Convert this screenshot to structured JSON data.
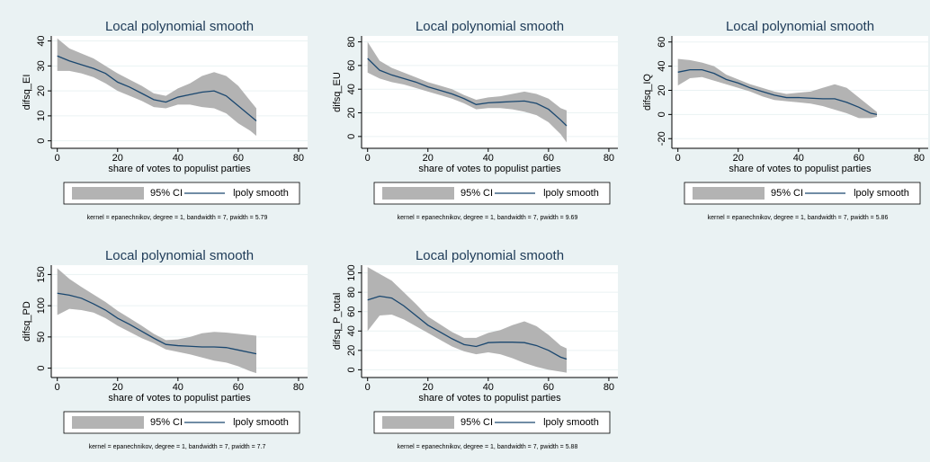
{
  "chart_data": [
    {
      "type": "line",
      "title": "Local polynomial smooth",
      "xlabel": "share of votes to populist parties",
      "ylabel": "difsq_EI",
      "note": "kernel = epanechnikov, degree = 1, bandwidth = 7, pwidth = 5.79",
      "x": [
        0,
        4,
        8,
        12,
        16,
        20,
        24,
        28,
        32,
        36,
        40,
        44,
        48,
        52,
        56,
        60,
        64,
        66
      ],
      "series": [
        {
          "name": "95% CI",
          "color": "#b3b3b3",
          "type": "band",
          "upper": [
            41,
            37,
            35,
            33,
            30,
            27,
            24.5,
            22,
            19,
            18,
            21,
            23,
            26,
            27.5,
            26,
            22,
            16,
            13
          ],
          "lower": [
            28,
            28,
            27,
            25.5,
            23,
            20,
            18,
            16,
            13.5,
            13,
            14.5,
            14.5,
            13.5,
            13,
            11,
            7,
            4,
            2
          ]
        },
        {
          "name": "lpoly smooth",
          "color": "#1a476f",
          "values": [
            34,
            32,
            30.5,
            29,
            27,
            23.5,
            21.5,
            19,
            16.5,
            15.5,
            17.5,
            18.5,
            19.5,
            20,
            18,
            14,
            10,
            8
          ]
        }
      ],
      "xlim": [
        -2,
        83
      ],
      "xticks": [
        0,
        20,
        40,
        60,
        80
      ],
      "ylim": [
        -3,
        42
      ],
      "yticks": [
        0,
        10,
        20,
        30,
        40
      ],
      "grid": true,
      "legend": "bottom"
    },
    {
      "type": "line",
      "title": "Local polynomial smooth",
      "xlabel": "share of votes to populist parties",
      "ylabel": "difsq_EU",
      "note": "kernel = epanechnikov, degree = 1, bandwidth = 7, pwidth = 9.69",
      "x": [
        0,
        4,
        8,
        12,
        16,
        20,
        24,
        28,
        32,
        36,
        40,
        44,
        48,
        52,
        56,
        60,
        64,
        66
      ],
      "series": [
        {
          "name": "95% CI",
          "color": "#b3b3b3",
          "type": "band",
          "upper": [
            80,
            64,
            58,
            54,
            50,
            46,
            43,
            40,
            35,
            31,
            33,
            34,
            36,
            38,
            36,
            32,
            24,
            22
          ],
          "lower": [
            54,
            49,
            46,
            44,
            41,
            38,
            35,
            32,
            28,
            23,
            24,
            24,
            23,
            21,
            18,
            12,
            2,
            -5
          ]
        },
        {
          "name": "lpoly smooth",
          "color": "#1a476f",
          "values": [
            66,
            56,
            52,
            49,
            46,
            42,
            39,
            36,
            32,
            27,
            28.5,
            29,
            29.5,
            30,
            28,
            23,
            14,
            9
          ]
        }
      ],
      "xlim": [
        -2,
        83
      ],
      "xticks": [
        0,
        20,
        40,
        60,
        80
      ],
      "ylim": [
        -10,
        85
      ],
      "yticks": [
        0,
        20,
        40,
        60,
        80
      ],
      "grid": true,
      "legend": "bottom"
    },
    {
      "type": "line",
      "title": "Local polynomial smooth",
      "xlabel": "share of votes to populist parties",
      "ylabel": "difsq_IQ",
      "note": "kernel = epanechnikov, degree = 1, bandwidth = 7, pwidth = 5.86",
      "x": [
        0,
        4,
        8,
        12,
        16,
        20,
        24,
        28,
        32,
        36,
        40,
        44,
        48,
        52,
        56,
        60,
        64,
        66
      ],
      "series": [
        {
          "name": "95% CI",
          "color": "#b3b3b3",
          "type": "band",
          "upper": [
            46,
            45,
            43,
            40,
            33,
            29,
            25,
            22,
            19,
            17,
            18,
            19,
            22,
            25,
            22,
            14,
            6,
            2
          ],
          "lower": [
            24,
            30,
            31,
            28,
            25,
            22,
            19,
            15,
            12,
            11,
            10,
            9,
            7,
            4,
            1,
            -3,
            -3,
            -2
          ]
        },
        {
          "name": "lpoly smooth",
          "color": "#1a476f",
          "values": [
            35,
            37,
            37,
            34,
            29,
            26,
            22,
            19,
            16,
            14,
            14,
            13.5,
            13,
            13,
            10,
            6,
            1,
            0
          ]
        }
      ],
      "xlim": [
        -2,
        83
      ],
      "xticks": [
        0,
        20,
        40,
        60,
        80
      ],
      "ylim": [
        -28,
        65
      ],
      "yticks": [
        -20,
        0,
        20,
        40,
        60
      ],
      "grid": true,
      "legend": "bottom"
    },
    {
      "type": "line",
      "title": "Local polynomial smooth",
      "xlabel": "share of votes to populist parties",
      "ylabel": "difsq_PD",
      "note": "kernel = epanechnikov, degree = 1, bandwidth = 7, pwidth = 7.7",
      "x": [
        0,
        4,
        8,
        12,
        16,
        20,
        24,
        28,
        32,
        36,
        40,
        44,
        48,
        52,
        56,
        60,
        64,
        66
      ],
      "series": [
        {
          "name": "95% CI",
          "color": "#b3b3b3",
          "type": "band",
          "upper": [
            160,
            143,
            130,
            118,
            106,
            92,
            80,
            68,
            55,
            45,
            46,
            50,
            56,
            58,
            57,
            55,
            53,
            52
          ],
          "lower": [
            85,
            95,
            93,
            89,
            80,
            68,
            58,
            48,
            40,
            30,
            26,
            22,
            17,
            12,
            9,
            3,
            -5,
            -8
          ]
        },
        {
          "name": "lpoly smooth",
          "color": "#1a476f",
          "values": [
            120,
            117,
            112,
            103,
            93,
            80,
            70,
            59,
            48,
            38,
            36,
            35,
            34,
            34,
            33,
            29,
            25,
            23
          ]
        }
      ],
      "xlim": [
        -2,
        83
      ],
      "xticks": [
        0,
        20,
        40,
        60,
        80
      ],
      "ylim": [
        -15,
        165
      ],
      "yticks": [
        0,
        50,
        100,
        150
      ],
      "grid": true,
      "legend": "bottom"
    },
    {
      "type": "line",
      "title": "Local polynomial smooth",
      "xlabel": "share of votes to populist parties",
      "ylabel": "difsq_P_total",
      "note": "kernel = epanechnikov, degree = 1, bandwidth = 7, pwidth = 5.88",
      "x": [
        0,
        4,
        8,
        12,
        16,
        20,
        24,
        28,
        32,
        36,
        40,
        44,
        48,
        52,
        56,
        60,
        64,
        66
      ],
      "series": [
        {
          "name": "95% CI",
          "color": "#b3b3b3",
          "type": "band",
          "upper": [
            106,
            99,
            92,
            80,
            68,
            55,
            47,
            39,
            33,
            33,
            38,
            41,
            46,
            50,
            45,
            36,
            25,
            22
          ],
          "lower": [
            40,
            56,
            57,
            52,
            45,
            38,
            31,
            24,
            19,
            16,
            18,
            16,
            12,
            7,
            3,
            0,
            -2,
            -3
          ]
        },
        {
          "name": "lpoly smooth",
          "color": "#1a476f",
          "values": [
            72,
            76,
            74,
            66,
            56,
            46,
            39,
            32,
            26,
            24,
            28,
            28.5,
            28.5,
            28,
            25,
            20,
            13,
            11
          ]
        }
      ],
      "xlim": [
        -2,
        83
      ],
      "xticks": [
        0,
        20,
        40,
        60,
        80
      ],
      "ylim": [
        -8,
        108
      ],
      "yticks": [
        0,
        20,
        40,
        60,
        80,
        100
      ],
      "grid": true,
      "legend": "bottom"
    }
  ]
}
